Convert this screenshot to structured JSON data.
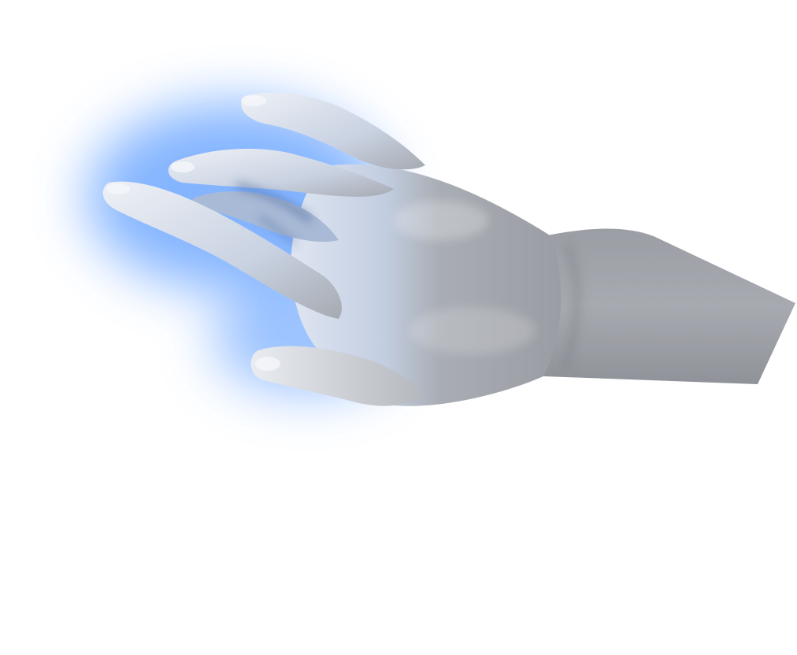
{
  "scene": {
    "subject": "hand-render",
    "colors": {
      "background": "#ffffff",
      "glow": "#6fa8ff",
      "skin_light": "#e4e6ea",
      "skin_mid": "#b9bcc2",
      "skin_dark": "#8e9197",
      "tint_blue": "#bcd0ee"
    }
  }
}
